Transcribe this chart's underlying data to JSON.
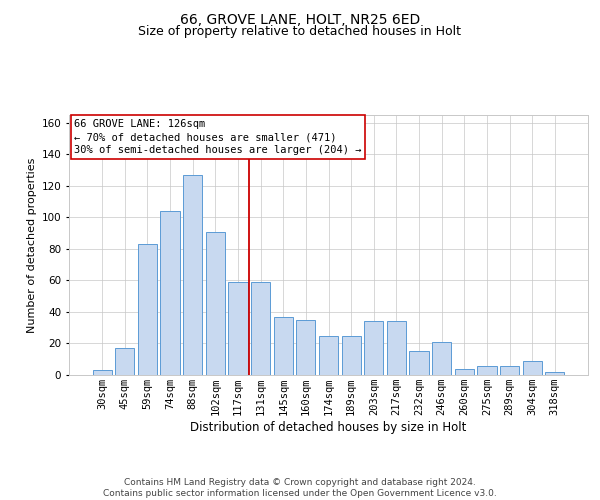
{
  "title1": "66, GROVE LANE, HOLT, NR25 6ED",
  "title2": "Size of property relative to detached houses in Holt",
  "xlabel": "Distribution of detached houses by size in Holt",
  "ylabel": "Number of detached properties",
  "categories": [
    "30sqm",
    "45sqm",
    "59sqm",
    "74sqm",
    "88sqm",
    "102sqm",
    "117sqm",
    "131sqm",
    "145sqm",
    "160sqm",
    "174sqm",
    "189sqm",
    "203sqm",
    "217sqm",
    "232sqm",
    "246sqm",
    "260sqm",
    "275sqm",
    "289sqm",
    "304sqm",
    "318sqm"
  ],
  "values": [
    3,
    17,
    83,
    104,
    127,
    91,
    59,
    59,
    37,
    35,
    25,
    25,
    34,
    34,
    15,
    21,
    4,
    6,
    6,
    9,
    2
  ],
  "bar_color": "#c8d9f0",
  "bar_edge_color": "#5b9bd5",
  "marker_category_index": 7,
  "marker_line_color": "#cc0000",
  "annotation_text": "66 GROVE LANE: 126sqm\n← 70% of detached houses are smaller (471)\n30% of semi-detached houses are larger (204) →",
  "annotation_box_color": "#ffffff",
  "annotation_box_edge_color": "#cc0000",
  "ylim": [
    0,
    165
  ],
  "yticks": [
    0,
    20,
    40,
    60,
    80,
    100,
    120,
    140,
    160
  ],
  "footer_text": "Contains HM Land Registry data © Crown copyright and database right 2024.\nContains public sector information licensed under the Open Government Licence v3.0.",
  "background_color": "#ffffff",
  "grid_color": "#c8c8c8",
  "title1_fontsize": 10,
  "title2_fontsize": 9,
  "xlabel_fontsize": 8.5,
  "ylabel_fontsize": 8,
  "tick_fontsize": 7.5,
  "footer_fontsize": 6.5,
  "annotation_fontsize": 7.5
}
